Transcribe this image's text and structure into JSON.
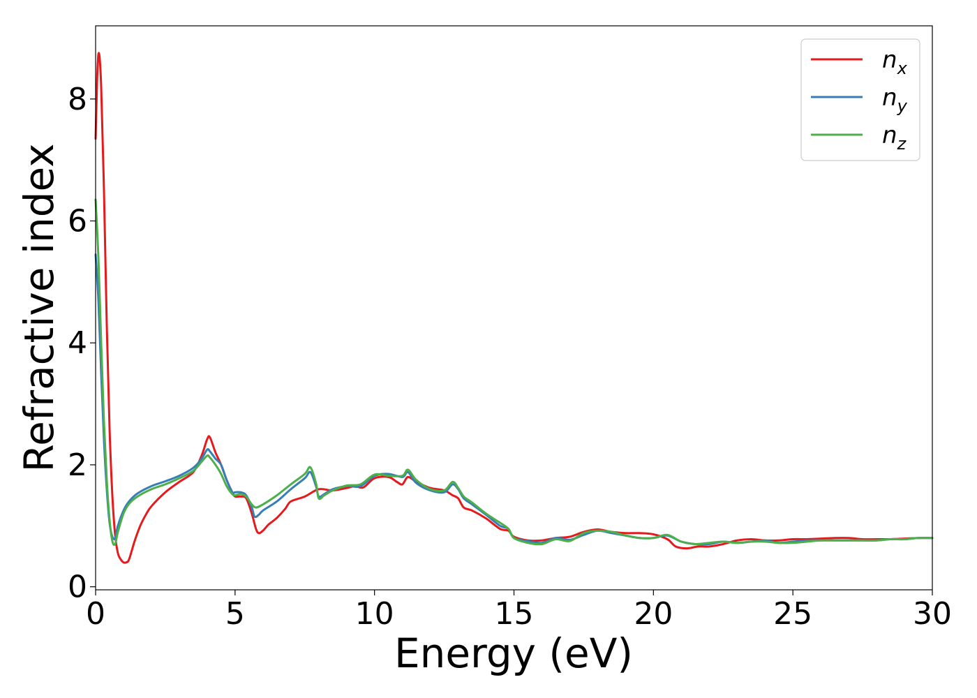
{
  "chart_data": {
    "type": "line",
    "xlabel": "Energy (eV)",
    "ylabel": "Refractive index",
    "xlim": [
      0,
      30
    ],
    "ylim": [
      -0.05,
      9.2
    ],
    "grid": false,
    "legend_position": "top-right",
    "x_ticks": [
      0,
      5,
      10,
      15,
      20,
      25,
      30
    ],
    "y_ticks": [
      0,
      2,
      4,
      6,
      8
    ],
    "series": [
      {
        "base": "n",
        "sub": "x",
        "color": "#e41a1c",
        "points": [
          [
            0,
            7.35
          ],
          [
            0.06,
            8.4
          ],
          [
            0.12,
            8.75
          ],
          [
            0.2,
            8.2
          ],
          [
            0.3,
            6.5
          ],
          [
            0.4,
            4.3
          ],
          [
            0.5,
            2.6
          ],
          [
            0.6,
            1.5
          ],
          [
            0.7,
            0.85
          ],
          [
            0.8,
            0.55
          ],
          [
            0.9,
            0.45
          ],
          [
            1.0,
            0.4
          ],
          [
            1.1,
            0.4
          ],
          [
            1.2,
            0.45
          ],
          [
            1.4,
            0.75
          ],
          [
            1.6,
            1.0
          ],
          [
            1.8,
            1.18
          ],
          [
            2.0,
            1.32
          ],
          [
            2.5,
            1.55
          ],
          [
            3.0,
            1.72
          ],
          [
            3.5,
            1.88
          ],
          [
            3.8,
            2.15
          ],
          [
            4.0,
            2.42
          ],
          [
            4.1,
            2.45
          ],
          [
            4.3,
            2.2
          ],
          [
            4.5,
            2.0
          ],
          [
            4.7,
            1.75
          ],
          [
            4.9,
            1.55
          ],
          [
            5.0,
            1.48
          ],
          [
            5.2,
            1.48
          ],
          [
            5.4,
            1.45
          ],
          [
            5.6,
            1.2
          ],
          [
            5.75,
            0.95
          ],
          [
            5.85,
            0.88
          ],
          [
            6.0,
            0.92
          ],
          [
            6.2,
            1.02
          ],
          [
            6.5,
            1.13
          ],
          [
            6.8,
            1.28
          ],
          [
            7.0,
            1.4
          ],
          [
            7.5,
            1.48
          ],
          [
            8.0,
            1.6
          ],
          [
            8.5,
            1.58
          ],
          [
            9.0,
            1.62
          ],
          [
            9.3,
            1.65
          ],
          [
            9.6,
            1.63
          ],
          [
            10.0,
            1.78
          ],
          [
            10.5,
            1.8
          ],
          [
            10.8,
            1.72
          ],
          [
            11.0,
            1.68
          ],
          [
            11.2,
            1.8
          ],
          [
            11.5,
            1.72
          ],
          [
            12.0,
            1.62
          ],
          [
            12.5,
            1.58
          ],
          [
            12.8,
            1.5
          ],
          [
            13.0,
            1.45
          ],
          [
            13.2,
            1.3
          ],
          [
            13.5,
            1.25
          ],
          [
            14.0,
            1.12
          ],
          [
            14.5,
            0.95
          ],
          [
            14.8,
            0.92
          ],
          [
            15.0,
            0.82
          ],
          [
            15.5,
            0.76
          ],
          [
            16.0,
            0.76
          ],
          [
            16.5,
            0.8
          ],
          [
            17.0,
            0.82
          ],
          [
            17.5,
            0.9
          ],
          [
            18.0,
            0.94
          ],
          [
            18.5,
            0.9
          ],
          [
            19.0,
            0.88
          ],
          [
            19.5,
            0.88
          ],
          [
            20.0,
            0.86
          ],
          [
            20.5,
            0.78
          ],
          [
            20.8,
            0.66
          ],
          [
            21.2,
            0.63
          ],
          [
            21.6,
            0.66
          ],
          [
            22.0,
            0.66
          ],
          [
            22.5,
            0.7
          ],
          [
            23.0,
            0.76
          ],
          [
            23.5,
            0.78
          ],
          [
            24.0,
            0.76
          ],
          [
            24.5,
            0.76
          ],
          [
            25.0,
            0.78
          ],
          [
            25.5,
            0.78
          ],
          [
            26.0,
            0.79
          ],
          [
            26.5,
            0.8
          ],
          [
            27.0,
            0.8
          ],
          [
            27.5,
            0.78
          ],
          [
            28.0,
            0.78
          ],
          [
            28.5,
            0.78
          ],
          [
            29.0,
            0.79
          ],
          [
            29.5,
            0.8
          ],
          [
            30.0,
            0.8
          ]
        ]
      },
      {
        "base": "n",
        "sub": "y",
        "color": "#377eb8",
        "points": [
          [
            0,
            5.45
          ],
          [
            0.1,
            4.7
          ],
          [
            0.2,
            3.5
          ],
          [
            0.3,
            2.4
          ],
          [
            0.4,
            1.6
          ],
          [
            0.5,
            1.05
          ],
          [
            0.6,
            0.82
          ],
          [
            0.7,
            0.8
          ],
          [
            0.8,
            1.0
          ],
          [
            1.0,
            1.25
          ],
          [
            1.2,
            1.4
          ],
          [
            1.5,
            1.53
          ],
          [
            2.0,
            1.65
          ],
          [
            2.5,
            1.73
          ],
          [
            3.0,
            1.82
          ],
          [
            3.5,
            1.95
          ],
          [
            3.8,
            2.1
          ],
          [
            4.0,
            2.25
          ],
          [
            4.1,
            2.22
          ],
          [
            4.3,
            2.1
          ],
          [
            4.5,
            2.0
          ],
          [
            4.7,
            1.75
          ],
          [
            4.9,
            1.55
          ],
          [
            5.0,
            1.55
          ],
          [
            5.2,
            1.55
          ],
          [
            5.4,
            1.5
          ],
          [
            5.6,
            1.3
          ],
          [
            5.7,
            1.15
          ],
          [
            5.85,
            1.18
          ],
          [
            6.0,
            1.25
          ],
          [
            6.5,
            1.4
          ],
          [
            7.0,
            1.6
          ],
          [
            7.5,
            1.78
          ],
          [
            7.7,
            1.88
          ],
          [
            7.9,
            1.65
          ],
          [
            8.0,
            1.48
          ],
          [
            8.2,
            1.52
          ],
          [
            8.5,
            1.6
          ],
          [
            9.0,
            1.65
          ],
          [
            9.5,
            1.65
          ],
          [
            10.0,
            1.82
          ],
          [
            10.5,
            1.85
          ],
          [
            11.0,
            1.8
          ],
          [
            11.2,
            1.88
          ],
          [
            11.5,
            1.7
          ],
          [
            12.0,
            1.58
          ],
          [
            12.5,
            1.55
          ],
          [
            12.8,
            1.68
          ],
          [
            13.0,
            1.6
          ],
          [
            13.2,
            1.45
          ],
          [
            13.5,
            1.35
          ],
          [
            14.0,
            1.18
          ],
          [
            14.5,
            1.0
          ],
          [
            14.8,
            0.95
          ],
          [
            15.0,
            0.8
          ],
          [
            15.5,
            0.75
          ],
          [
            16.0,
            0.72
          ],
          [
            16.5,
            0.8
          ],
          [
            17.0,
            0.77
          ],
          [
            17.5,
            0.85
          ],
          [
            18.0,
            0.92
          ],
          [
            18.5,
            0.88
          ],
          [
            19.0,
            0.84
          ],
          [
            19.5,
            0.8
          ],
          [
            20.0,
            0.8
          ],
          [
            20.5,
            0.84
          ],
          [
            21.0,
            0.74
          ],
          [
            21.5,
            0.7
          ],
          [
            22.0,
            0.7
          ],
          [
            22.5,
            0.74
          ],
          [
            23.0,
            0.72
          ],
          [
            23.5,
            0.74
          ],
          [
            24.0,
            0.76
          ],
          [
            24.5,
            0.72
          ],
          [
            25.0,
            0.74
          ],
          [
            25.5,
            0.76
          ],
          [
            26.0,
            0.76
          ],
          [
            26.5,
            0.76
          ],
          [
            27.0,
            0.76
          ],
          [
            27.5,
            0.76
          ],
          [
            28.0,
            0.76
          ],
          [
            28.5,
            0.78
          ],
          [
            29.0,
            0.78
          ],
          [
            29.5,
            0.8
          ],
          [
            30.0,
            0.8
          ]
        ]
      },
      {
        "base": "n",
        "sub": "z",
        "color": "#4daf4a",
        "points": [
          [
            0,
            6.35
          ],
          [
            0.1,
            5.4
          ],
          [
            0.2,
            4.0
          ],
          [
            0.3,
            2.7
          ],
          [
            0.4,
            1.75
          ],
          [
            0.5,
            1.1
          ],
          [
            0.6,
            0.75
          ],
          [
            0.7,
            0.7
          ],
          [
            0.8,
            0.9
          ],
          [
            1.0,
            1.2
          ],
          [
            1.2,
            1.36
          ],
          [
            1.5,
            1.48
          ],
          [
            2.0,
            1.6
          ],
          [
            2.5,
            1.68
          ],
          [
            3.0,
            1.78
          ],
          [
            3.5,
            1.9
          ],
          [
            3.8,
            2.05
          ],
          [
            4.0,
            2.15
          ],
          [
            4.1,
            2.12
          ],
          [
            4.3,
            2.0
          ],
          [
            4.5,
            1.85
          ],
          [
            4.7,
            1.65
          ],
          [
            4.9,
            1.52
          ],
          [
            5.0,
            1.5
          ],
          [
            5.2,
            1.52
          ],
          [
            5.4,
            1.48
          ],
          [
            5.6,
            1.35
          ],
          [
            5.75,
            1.3
          ],
          [
            6.0,
            1.35
          ],
          [
            6.5,
            1.5
          ],
          [
            7.0,
            1.68
          ],
          [
            7.5,
            1.85
          ],
          [
            7.7,
            1.96
          ],
          [
            7.9,
            1.7
          ],
          [
            8.0,
            1.45
          ],
          [
            8.2,
            1.5
          ],
          [
            8.5,
            1.58
          ],
          [
            9.0,
            1.66
          ],
          [
            9.5,
            1.68
          ],
          [
            10.0,
            1.84
          ],
          [
            10.5,
            1.82
          ],
          [
            11.0,
            1.82
          ],
          [
            11.2,
            1.92
          ],
          [
            11.5,
            1.75
          ],
          [
            12.0,
            1.6
          ],
          [
            12.5,
            1.58
          ],
          [
            12.8,
            1.72
          ],
          [
            13.0,
            1.62
          ],
          [
            13.2,
            1.48
          ],
          [
            13.5,
            1.38
          ],
          [
            14.0,
            1.2
          ],
          [
            14.5,
            1.05
          ],
          [
            14.8,
            0.95
          ],
          [
            15.0,
            0.8
          ],
          [
            15.5,
            0.72
          ],
          [
            16.0,
            0.7
          ],
          [
            16.5,
            0.78
          ],
          [
            17.0,
            0.75
          ],
          [
            17.5,
            0.88
          ],
          [
            18.0,
            0.92
          ],
          [
            18.5,
            0.9
          ],
          [
            19.0,
            0.84
          ],
          [
            19.5,
            0.8
          ],
          [
            20.0,
            0.8
          ],
          [
            20.5,
            0.85
          ],
          [
            21.0,
            0.74
          ],
          [
            21.5,
            0.7
          ],
          [
            22.0,
            0.72
          ],
          [
            22.5,
            0.74
          ],
          [
            23.0,
            0.72
          ],
          [
            23.5,
            0.74
          ],
          [
            24.0,
            0.74
          ],
          [
            24.5,
            0.72
          ],
          [
            25.0,
            0.72
          ],
          [
            25.5,
            0.74
          ],
          [
            26.0,
            0.76
          ],
          [
            26.5,
            0.76
          ],
          [
            27.0,
            0.76
          ],
          [
            27.5,
            0.76
          ],
          [
            28.0,
            0.76
          ],
          [
            28.5,
            0.78
          ],
          [
            29.0,
            0.78
          ],
          [
            29.5,
            0.8
          ],
          [
            30.0,
            0.8
          ]
        ]
      }
    ]
  }
}
